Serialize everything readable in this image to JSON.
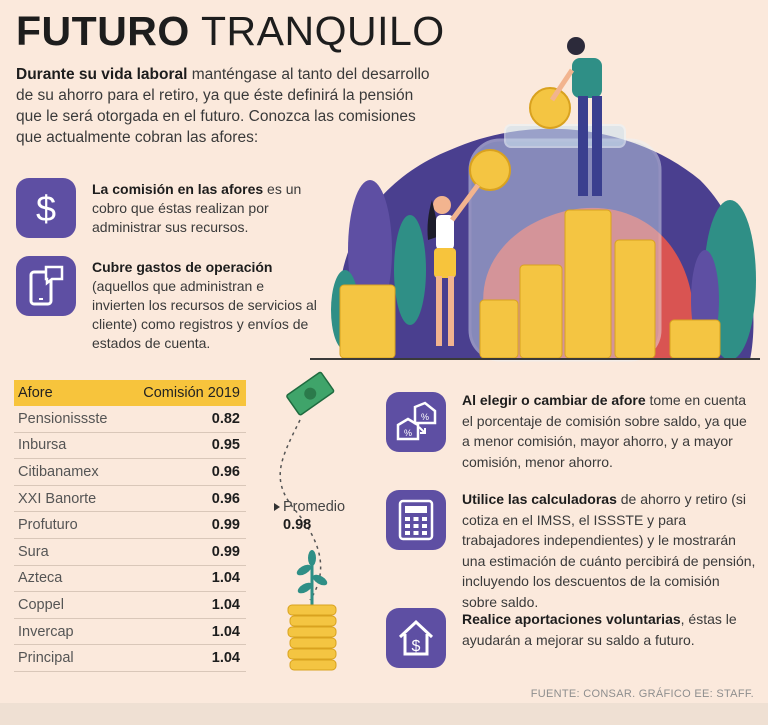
{
  "title": {
    "bold": "FUTURO",
    "light": "TRANQUILO"
  },
  "intro": {
    "bold": "Durante su vida laboral",
    "text": " manténgase al tanto del desarrollo de su ahorro para el retiro, ya que éste definirá la pensión que le será otorgada en el futuro. Conozca las comisiones que actualmente cobran las afores:"
  },
  "features": [
    {
      "bold": "La comisión en las afores",
      "text": " es un cobro que éstas realizan por administrar sus recursos.",
      "icon": "dollar-icon"
    },
    {
      "bold": "Cubre gastos de operación",
      "text": " (aquellos que administran e invierten los recursos de servicios al cliente) como registros y envíos de estados de cuenta.",
      "icon": "phone-message-icon"
    }
  ],
  "table": {
    "headers": [
      "Afore",
      "Comisión 2019"
    ],
    "rows": [
      {
        "name": "Pensionissste",
        "value": "0.82"
      },
      {
        "name": "Inbursa",
        "value": "0.95"
      },
      {
        "name": "Citibanamex",
        "value": "0.96"
      },
      {
        "name": "XXI Banorte",
        "value": "0.96"
      },
      {
        "name": "Profuturo",
        "value": "0.99"
      },
      {
        "name": "Sura",
        "value": "0.99"
      },
      {
        "name": "Azteca",
        "value": "1.04"
      },
      {
        "name": "Coppel",
        "value": "1.04"
      },
      {
        "name": "Invercap",
        "value": "1.04"
      },
      {
        "name": "Principal",
        "value": "1.04"
      }
    ]
  },
  "average": {
    "label": "Promedio",
    "value": "0.98"
  },
  "tips": [
    {
      "bold": "Al elegir o cambiar de afore",
      "text": " tome en cuenta el porcentaje de comisión sobre saldo, ya que a menor comisión, mayor ahorro, y a mayor comisión, menor ahorro.",
      "icon": "house-percent-icon"
    },
    {
      "bold": "Utilice las calculadoras",
      "text": " de ahorro y retiro (si cotiza en el IMSS, el ISSSTE y para trabajadores independientes) y le mostrarán una estimación de cuánto percibirá de pensión, incluyendo los descuentos de la comisión sobre saldo.",
      "icon": "calculator-icon"
    },
    {
      "bold": "Realice aportaciones voluntarias",
      "text": ", éstas le ayudarán a mejorar su saldo a futuro.",
      "icon": "house-dollar-icon"
    }
  ],
  "source": "FUENTE: CONSAR. GRÁFICO EE: STAFF.",
  "colors": {
    "purple": "#5e4fa3",
    "yellow": "#f7c43c",
    "background": "#fbe9dc",
    "teal": "#2f8f86"
  }
}
